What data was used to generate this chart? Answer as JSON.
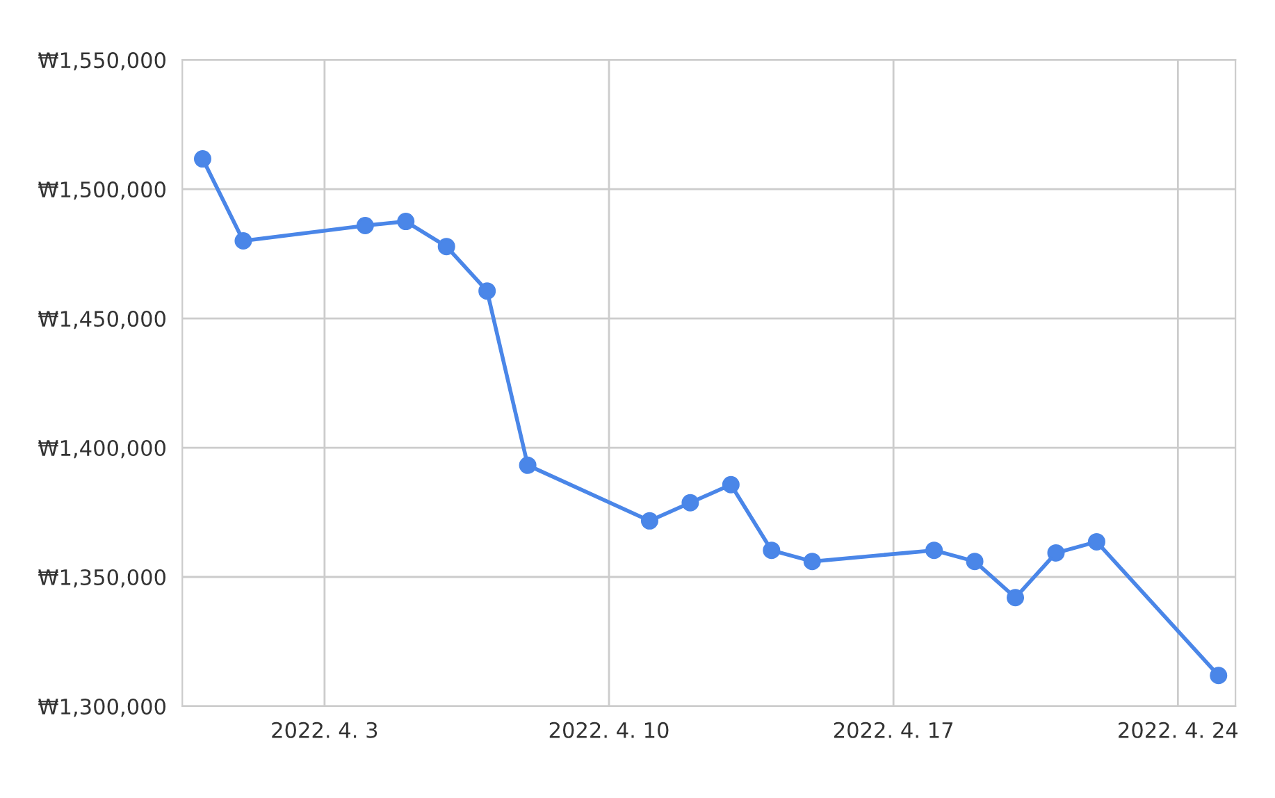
{
  "chart_data": {
    "type": "line",
    "x": [
      "2022-03-31",
      "2022-04-01",
      "2022-04-04",
      "2022-04-05",
      "2022-04-06",
      "2022-04-07",
      "2022-04-08",
      "2022-04-11",
      "2022-04-12",
      "2022-04-13",
      "2022-04-14",
      "2022-04-15",
      "2022-04-18",
      "2022-04-19",
      "2022-04-20",
      "2022-04-21",
      "2022-04-22",
      "2022-04-25"
    ],
    "series": [
      {
        "color": "#4a86e8",
        "values": [
          1511700,
          1480000,
          1485900,
          1487500,
          1477800,
          1460600,
          1393200,
          1371700,
          1378700,
          1385700,
          1360300,
          1356000,
          1360300,
          1356000,
          1342000,
          1359300,
          1363600,
          1311900
        ]
      }
    ],
    "xlim": [
      "2022-03-30T12:00",
      "2022-04-25T10:00"
    ],
    "xticks": [
      {
        "value": "2022-04-03",
        "label": "2022. 4. 3"
      },
      {
        "value": "2022-04-10",
        "label": "2022. 4. 10"
      },
      {
        "value": "2022-04-17",
        "label": "2022. 4. 17"
      },
      {
        "value": "2022-04-24",
        "label": "2022. 4. 24"
      }
    ],
    "ylim": [
      1300000,
      1550000
    ],
    "yticks": [
      {
        "value": 1300000,
        "label": "₩1,300,000"
      },
      {
        "value": 1350000,
        "label": "₩1,350,000"
      },
      {
        "value": 1400000,
        "label": "₩1,400,000"
      },
      {
        "value": 1450000,
        "label": "₩1,450,000"
      },
      {
        "value": 1500000,
        "label": "₩1,500,000"
      },
      {
        "value": 1550000,
        "label": "₩1,550,000"
      }
    ],
    "grid": true,
    "marker": "circle",
    "line_style": "solid"
  }
}
